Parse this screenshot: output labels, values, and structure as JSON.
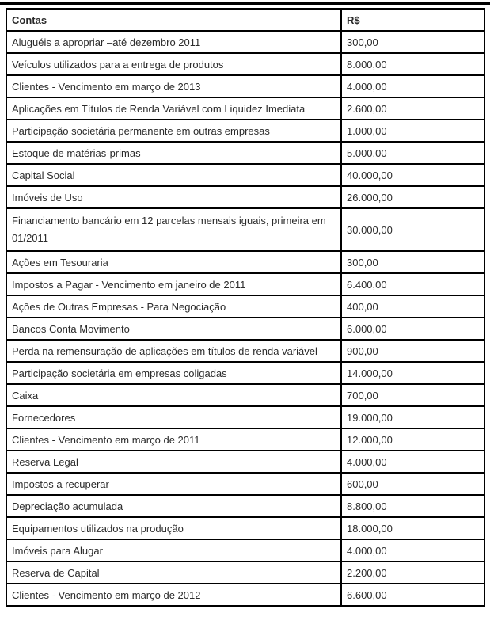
{
  "colors": {
    "border": "#000000",
    "text": "#2b2b2b",
    "background": "#ffffff"
  },
  "table": {
    "headers": [
      "Contas",
      "R$"
    ],
    "rows": [
      [
        "Aluguéis a apropriar –até dezembro 2011",
        "300,00"
      ],
      [
        "Veículos utilizados para a entrega de produtos",
        "8.000,00"
      ],
      [
        "Clientes - Vencimento em março de 2013",
        "4.000,00"
      ],
      [
        "Aplicações em Títulos de Renda Variável com Liquidez Imediata",
        "2.600,00"
      ],
      [
        "Participação societária permanente em outras empresas",
        "1.000,00"
      ],
      [
        "Estoque de matérias-primas",
        "5.000,00"
      ],
      [
        "Capital Social",
        "40.000,00"
      ],
      [
        "Imóveis de Uso",
        "26.000,00"
      ],
      [
        "Financiamento bancário em 12 parcelas mensais iguais, primeira em 01/2011",
        "30.000,00"
      ],
      [
        "Ações em Tesouraria",
        "300,00"
      ],
      [
        "Impostos a Pagar - Vencimento em janeiro de 2011",
        "6.400,00"
      ],
      [
        "Ações de Outras Empresas - Para Negociação",
        "400,00"
      ],
      [
        "Bancos Conta Movimento",
        "6.000,00"
      ],
      [
        "Perda na remensuração de aplicações em títulos de renda variável",
        "900,00"
      ],
      [
        "Participação societária em empresas coligadas",
        "14.000,00"
      ],
      [
        "Caixa",
        "700,00"
      ],
      [
        "Fornecedores",
        "19.000,00"
      ],
      [
        "Clientes - Vencimento em março de 2011",
        "12.000,00"
      ],
      [
        "Reserva Legal",
        "4.000,00"
      ],
      [
        "Impostos a recuperar",
        "600,00"
      ],
      [
        "Depreciação acumulada",
        "8.800,00"
      ],
      [
        "Equipamentos utilizados na produção",
        "18.000,00"
      ],
      [
        "Imóveis para Alugar",
        "4.000,00"
      ],
      [
        "Reserva de Capital",
        "2.200,00"
      ],
      [
        "Clientes - Vencimento em março de 2012",
        "6.600,00"
      ]
    ]
  }
}
